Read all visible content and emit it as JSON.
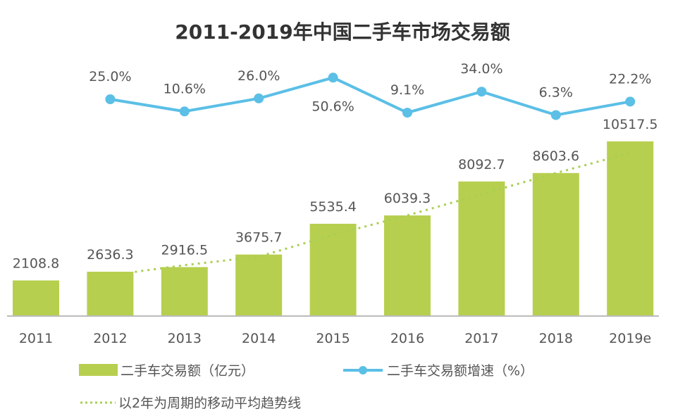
{
  "chart_data": {
    "type": "bar",
    "title": "2011-2019年中国二手车市场交易额",
    "categories": [
      "2011",
      "2012",
      "2013",
      "2014",
      "2015",
      "2016",
      "2017",
      "2018",
      "2019e"
    ],
    "series": [
      {
        "name": "二手车交易额（亿元）",
        "type": "bar",
        "color": "#b7cf4e",
        "values": [
          2108.8,
          2636.3,
          2916.5,
          3675.7,
          5535.4,
          6039.3,
          8092.7,
          8603.6,
          10517.5
        ],
        "labels": [
          "2108.8",
          "2636.3",
          "2916.5",
          "3675.7",
          "5535.4",
          "6039.3",
          "8092.7",
          "8603.6",
          "10517.5"
        ]
      },
      {
        "name": "二手车交易额增速（%）",
        "type": "line",
        "color": "#5bbfe6",
        "values": [
          null,
          25.0,
          10.6,
          26.0,
          50.6,
          9.1,
          34.0,
          6.3,
          22.2
        ],
        "labels": [
          null,
          "25.0%",
          "10.6%",
          "26.0%",
          "50.6%",
          "9.1%",
          "34.0%",
          "6.3%",
          "22.2%"
        ]
      },
      {
        "name": "以2年为周期的移动平均趋势线",
        "type": "moving-average",
        "period": 2,
        "color": "#a9cf55",
        "style": "dotted"
      }
    ],
    "legend_position": "bottom",
    "grid": false
  }
}
